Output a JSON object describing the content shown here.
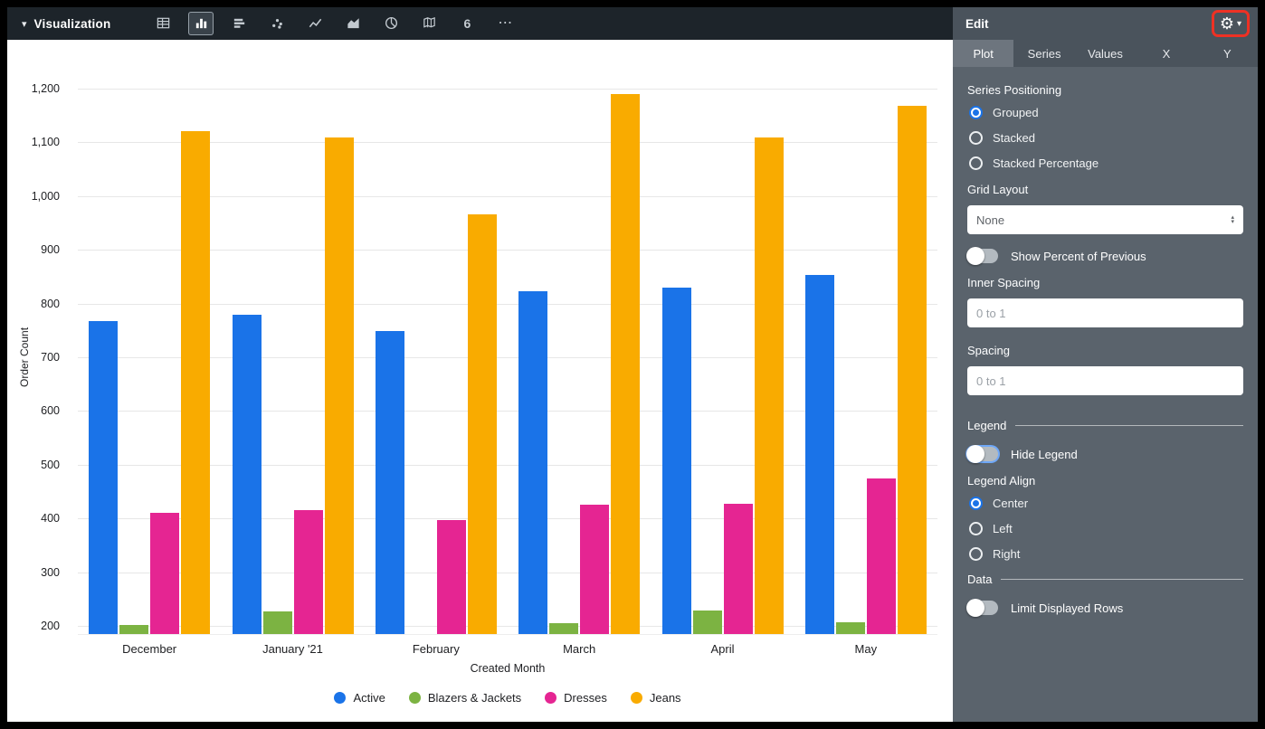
{
  "colors": {
    "accent": "#1A73E8",
    "annotation_highlight": "#EE3124",
    "toolbar_bg": "#1D242A",
    "panel_bg": "#5A636C"
  },
  "toolbar": {
    "title": "Visualization",
    "chart_types": [
      {
        "name": "table",
        "selected": false
      },
      {
        "name": "column-chart",
        "selected": true
      },
      {
        "name": "bar-chart",
        "selected": false
      },
      {
        "name": "scatterplot",
        "selected": false
      },
      {
        "name": "line-chart",
        "selected": false
      },
      {
        "name": "area-chart",
        "selected": false
      },
      {
        "name": "pie-chart",
        "selected": false
      },
      {
        "name": "map",
        "selected": false
      },
      {
        "name": "single-value",
        "selected": false,
        "glyph": "6"
      },
      {
        "name": "more-options",
        "selected": false,
        "glyph": "⋯"
      }
    ]
  },
  "edit_panel": {
    "title": "Edit",
    "tabs": [
      {
        "label": "Plot",
        "active": true
      },
      {
        "label": "Series",
        "active": false
      },
      {
        "label": "Values",
        "active": false
      },
      {
        "label": "X",
        "active": false
      },
      {
        "label": "Y",
        "active": false
      }
    ],
    "series_positioning": {
      "label": "Series Positioning",
      "options": [
        {
          "label": "Grouped",
          "selected": true
        },
        {
          "label": "Stacked",
          "selected": false
        },
        {
          "label": "Stacked Percentage",
          "selected": false
        }
      ]
    },
    "grid_layout": {
      "label": "Grid Layout",
      "value": "None"
    },
    "show_percent_of_previous": {
      "label": "Show Percent of Previous",
      "on": false
    },
    "inner_spacing": {
      "label": "Inner Spacing",
      "value": "",
      "placeholder": "0 to 1"
    },
    "spacing": {
      "label": "Spacing",
      "value": "",
      "placeholder": "0 to 1"
    },
    "legend_section": {
      "label": "Legend"
    },
    "hide_legend": {
      "label": "Hide Legend",
      "on": false,
      "focused": true
    },
    "legend_align": {
      "label": "Legend Align",
      "options": [
        {
          "label": "Center",
          "selected": true
        },
        {
          "label": "Left",
          "selected": false
        },
        {
          "label": "Right",
          "selected": false
        }
      ]
    },
    "data_section": {
      "label": "Data"
    },
    "limit_displayed_rows": {
      "label": "Limit Displayed Rows",
      "on": false
    }
  },
  "chart_data": {
    "type": "bar",
    "orientation": "vertical-grouped",
    "title": "",
    "xlabel": "Created Month",
    "ylabel": "Order Count",
    "categories": [
      "December",
      "January '21",
      "February",
      "March",
      "April",
      "May"
    ],
    "series": [
      {
        "name": "Active",
        "color": "#1A73E8",
        "values": [
          767,
          779,
          748,
          823,
          829,
          853
        ]
      },
      {
        "name": "Blazers & Jackets",
        "color": "#7CB342",
        "values": [
          202,
          227,
          null,
          205,
          229,
          207
        ]
      },
      {
        "name": "Dresses",
        "color": "#E52592",
        "values": [
          411,
          415,
          397,
          425,
          427,
          474
        ]
      },
      {
        "name": "Jeans",
        "color": "#F9AB00",
        "values": [
          1121,
          1109,
          966,
          1190,
          1109,
          1168
        ]
      }
    ],
    "y_ticks": [
      {
        "label": "1,200",
        "value": 1200
      },
      {
        "label": "1,100",
        "value": 1100
      },
      {
        "label": "1,000",
        "value": 1000
      },
      {
        "label": "900",
        "value": 900
      },
      {
        "label": "800",
        "value": 800
      },
      {
        "label": "700",
        "value": 700
      },
      {
        "label": "600",
        "value": 600
      },
      {
        "label": "500",
        "value": 500
      },
      {
        "label": "400",
        "value": 400
      },
      {
        "label": "300",
        "value": 300
      },
      {
        "label": "200",
        "value": 200
      }
    ],
    "ylim": [
      185,
      1215
    ],
    "grid": true,
    "legend_position": "bottom"
  }
}
